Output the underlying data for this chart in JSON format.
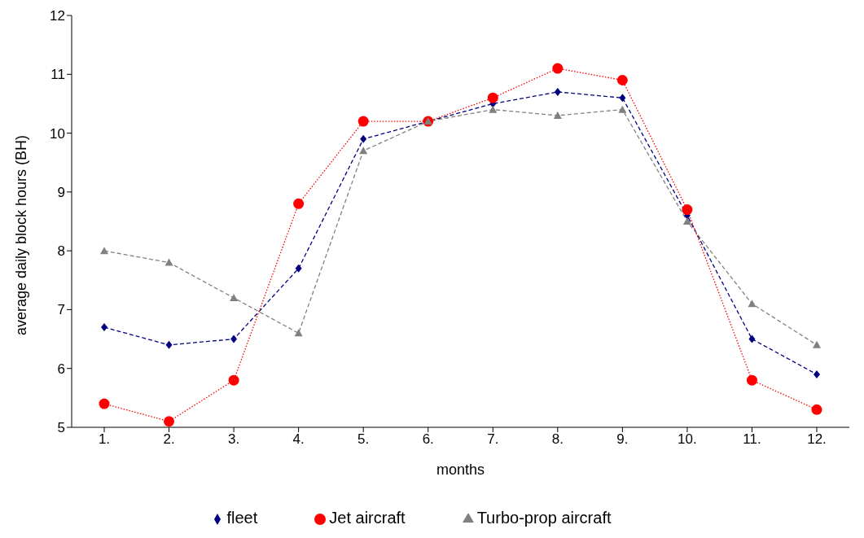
{
  "chart_data": {
    "type": "line",
    "xlabel": "months",
    "ylabel": "average daily block hours (BH)",
    "categories": [
      "1.",
      "2.",
      "3.",
      "4.",
      "5.",
      "6.",
      "7.",
      "8.",
      "9.",
      "10.",
      "11.",
      "12."
    ],
    "series": [
      {
        "name": "fleet",
        "color": "#000080",
        "marker": "diamond",
        "line_style": "dashed",
        "values": [
          6.7,
          6.4,
          6.5,
          7.7,
          9.9,
          10.2,
          10.5,
          10.7,
          10.6,
          8.6,
          6.5,
          5.9
        ]
      },
      {
        "name": "Jet aircraft",
        "color": "#ff0000",
        "marker": "circle",
        "line_style": "dotted",
        "values": [
          5.4,
          5.1,
          5.8,
          8.8,
          10.2,
          10.2,
          10.6,
          11.1,
          10.9,
          8.7,
          5.8,
          5.3
        ]
      },
      {
        "name": "Turbo-prop aircraft",
        "color": "#808080",
        "marker": "triangle",
        "line_style": "dashed",
        "values": [
          8.0,
          7.8,
          7.2,
          6.6,
          9.7,
          10.2,
          10.4,
          10.3,
          10.4,
          8.5,
          7.1,
          6.4
        ]
      }
    ],
    "ylim": [
      5,
      12
    ],
    "yticks": [
      5,
      6,
      7,
      8,
      9,
      10,
      11,
      12
    ],
    "grid": false,
    "legend": "bottom"
  }
}
